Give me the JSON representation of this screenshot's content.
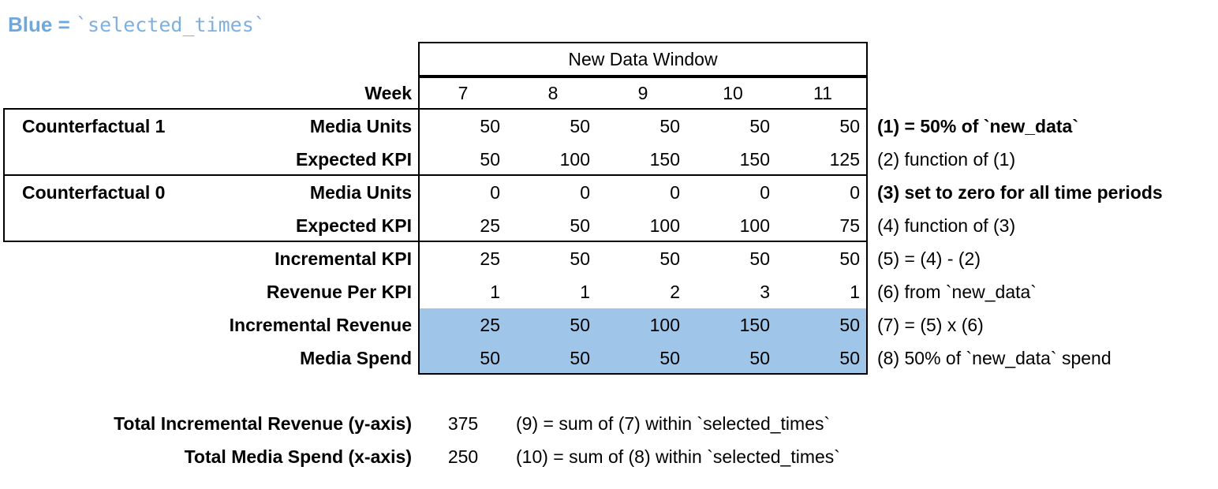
{
  "legend": {
    "prefix": "Blue =",
    "code": "`selected_times`"
  },
  "colors": {
    "highlight": "#9fc5e8",
    "legend_text": "#6fa8dc",
    "border": "#000000"
  },
  "table": {
    "header": "New Data Window",
    "week_label": "Week",
    "weeks": [
      "7",
      "8",
      "9",
      "10",
      "11"
    ],
    "rows": [
      {
        "group": "Counterfactual 1",
        "label": "Media Units",
        "values": [
          "50",
          "50",
          "50",
          "50",
          "50"
        ],
        "note": "(1) = 50% of `new_data`",
        "note_bold": true,
        "highlight": false
      },
      {
        "group": "",
        "label": "Expected KPI",
        "values": [
          "50",
          "100",
          "150",
          "150",
          "125"
        ],
        "note": "(2) function of (1)",
        "note_bold": false,
        "highlight": false
      },
      {
        "group": "Counterfactual 0",
        "label": "Media Units",
        "values": [
          "0",
          "0",
          "0",
          "0",
          "0"
        ],
        "note": "(3) set to zero for all time periods",
        "note_bold": true,
        "highlight": false
      },
      {
        "group": "",
        "label": "Expected KPI",
        "values": [
          "25",
          "50",
          "100",
          "100",
          "75"
        ],
        "note": "(4) function of (3)",
        "note_bold": false,
        "highlight": false
      },
      {
        "group": "",
        "label": "Incremental KPI",
        "values": [
          "25",
          "50",
          "50",
          "50",
          "50"
        ],
        "note": "(5) = (4) - (2)",
        "note_bold": false,
        "highlight": false
      },
      {
        "group": "",
        "label": "Revenue Per KPI",
        "values": [
          "1",
          "1",
          "2",
          "3",
          "1"
        ],
        "note": "(6) from `new_data`",
        "note_bold": false,
        "highlight": false
      },
      {
        "group": "",
        "label": "Incremental Revenue",
        "values": [
          "25",
          "50",
          "100",
          "150",
          "50"
        ],
        "note": "(7) = (5) x (6)",
        "note_bold": false,
        "highlight": true
      },
      {
        "group": "",
        "label": "Media Spend",
        "values": [
          "50",
          "50",
          "50",
          "50",
          "50"
        ],
        "note": "(8) 50% of `new_data` spend",
        "note_bold": false,
        "highlight": true
      }
    ]
  },
  "summary": [
    {
      "label": "Total Incremental Revenue (y-axis)",
      "value": "375",
      "note": "(9) = sum of (7) within `selected_times`"
    },
    {
      "label": "Total Media Spend (x-axis)",
      "value": "250",
      "note": "(10) = sum of (8) within `selected_times`"
    }
  ]
}
